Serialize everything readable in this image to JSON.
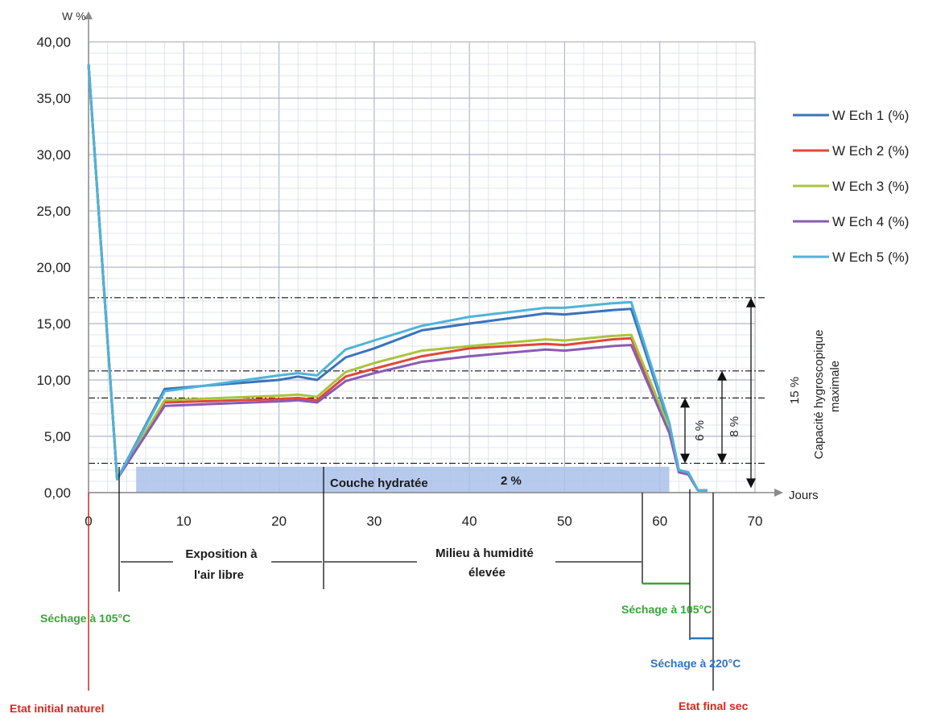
{
  "chart_data": {
    "type": "line",
    "ylabel": "W %",
    "xlabel": "Jours",
    "xlim": [
      0,
      70
    ],
    "ylim": [
      0,
      40
    ],
    "x_ticks": [
      0,
      10,
      20,
      30,
      40,
      50,
      60,
      70
    ],
    "y_ticks": [
      "0,00",
      "5,00",
      "10,00",
      "15,00",
      "20,00",
      "25,00",
      "30,00",
      "35,00",
      "40,00"
    ],
    "y_tick_values": [
      0,
      5,
      10,
      15,
      20,
      25,
      30,
      35,
      40
    ],
    "grid": true,
    "legend_position": "right",
    "series": [
      {
        "name": "W Ech 1 (%)",
        "color": "#3b73b9",
        "points": [
          [
            0,
            38
          ],
          [
            3,
            1.2
          ],
          [
            8,
            9.2
          ],
          [
            20,
            10
          ],
          [
            22,
            10.3
          ],
          [
            24,
            10.0
          ],
          [
            27,
            12.0
          ],
          [
            30,
            12.8
          ],
          [
            35,
            14.4
          ],
          [
            40,
            15.0
          ],
          [
            48,
            15.9
          ],
          [
            50,
            15.8
          ],
          [
            55,
            16.2
          ],
          [
            57,
            16.3
          ],
          [
            61,
            6
          ],
          [
            62,
            2.0
          ],
          [
            63,
            1.8
          ],
          [
            64,
            0.2
          ],
          [
            65,
            0.2
          ]
        ]
      },
      {
        "name": "W Ech 2 (%)",
        "color": "#e0473a",
        "points": [
          [
            0,
            38
          ],
          [
            3,
            1.2
          ],
          [
            8,
            8.0
          ],
          [
            20,
            8.3
          ],
          [
            22,
            8.4
          ],
          [
            24,
            8.2
          ],
          [
            27,
            10.3
          ],
          [
            30,
            11.0
          ],
          [
            35,
            12.1
          ],
          [
            40,
            12.8
          ],
          [
            48,
            13.2
          ],
          [
            50,
            13.1
          ],
          [
            55,
            13.6
          ],
          [
            57,
            13.7
          ],
          [
            61,
            5.5
          ],
          [
            62,
            1.9
          ],
          [
            63,
            1.7
          ],
          [
            64,
            0.2
          ],
          [
            65,
            0.2
          ]
        ]
      },
      {
        "name": "W Ech 3 (%)",
        "color": "#a9c43e",
        "points": [
          [
            0,
            38
          ],
          [
            3,
            1.2
          ],
          [
            8,
            8.2
          ],
          [
            20,
            8.6
          ],
          [
            22,
            8.7
          ],
          [
            24,
            8.5
          ],
          [
            27,
            10.7
          ],
          [
            30,
            11.5
          ],
          [
            35,
            12.6
          ],
          [
            40,
            13.0
          ],
          [
            48,
            13.6
          ],
          [
            50,
            13.5
          ],
          [
            55,
            13.9
          ],
          [
            57,
            14.0
          ],
          [
            61,
            5.7
          ],
          [
            62,
            1.9
          ],
          [
            63,
            1.7
          ],
          [
            64,
            0.2
          ],
          [
            65,
            0.2
          ]
        ]
      },
      {
        "name": "W Ech 4 (%)",
        "color": "#8a5bb5",
        "points": [
          [
            0,
            38
          ],
          [
            3,
            1.2
          ],
          [
            8,
            7.7
          ],
          [
            20,
            8.1
          ],
          [
            22,
            8.2
          ],
          [
            24,
            8.0
          ],
          [
            27,
            9.9
          ],
          [
            30,
            10.6
          ],
          [
            35,
            11.6
          ],
          [
            40,
            12.1
          ],
          [
            48,
            12.7
          ],
          [
            50,
            12.6
          ],
          [
            55,
            13.0
          ],
          [
            57,
            13.1
          ],
          [
            61,
            5.3
          ],
          [
            62,
            1.8
          ],
          [
            63,
            1.6
          ],
          [
            64,
            0.2
          ],
          [
            65,
            0.2
          ]
        ]
      },
      {
        "name": "W Ech 5 (%)",
        "color": "#4fb3d9",
        "points": [
          [
            0,
            38
          ],
          [
            3,
            1.2
          ],
          [
            8,
            9.0
          ],
          [
            20,
            10.4
          ],
          [
            22,
            10.6
          ],
          [
            24,
            10.4
          ],
          [
            27,
            12.7
          ],
          [
            30,
            13.5
          ],
          [
            35,
            14.8
          ],
          [
            40,
            15.6
          ],
          [
            48,
            16.4
          ],
          [
            50,
            16.4
          ],
          [
            55,
            16.8
          ],
          [
            57,
            16.9
          ],
          [
            61,
            6.2
          ],
          [
            62,
            2.0
          ],
          [
            63,
            1.8
          ],
          [
            64,
            0.2
          ],
          [
            65,
            0.2
          ]
        ]
      }
    ],
    "reference_lines": [
      17.3,
      10.8,
      8.4,
      2.6
    ],
    "hydrated_layer": {
      "label": "Couche hydratée",
      "value_label": "2 %",
      "x_range": [
        5,
        61
      ],
      "y_range": [
        0,
        2.3
      ]
    },
    "annotations": {
      "capacity_value": "15 %",
      "capacity_text_1": "Capacité hygroscopique",
      "capacity_text_2": "maximale",
      "arrow_6": "6 %",
      "arrow_8": "8 %",
      "phase_air": [
        "Exposition à",
        "l'air libre"
      ],
      "phase_humid": [
        "Milieu à humidité",
        "élevée"
      ],
      "drying_105_left": "Séchage à 105°C",
      "drying_105_right": "Séchage à 105°C",
      "drying_220": "Séchage à 220°C",
      "initial_state": "Etat initial naturel",
      "final_state": "Etat final sec"
    },
    "colors": {
      "axis": "#8a8a8a",
      "grid_major": "#b0b8c8",
      "grid_minor": "#d8dde6",
      "red": "#d9261c",
      "green": "#3aa535",
      "blue": "#2e74c4",
      "layer": "#a9c1ea"
    }
  }
}
